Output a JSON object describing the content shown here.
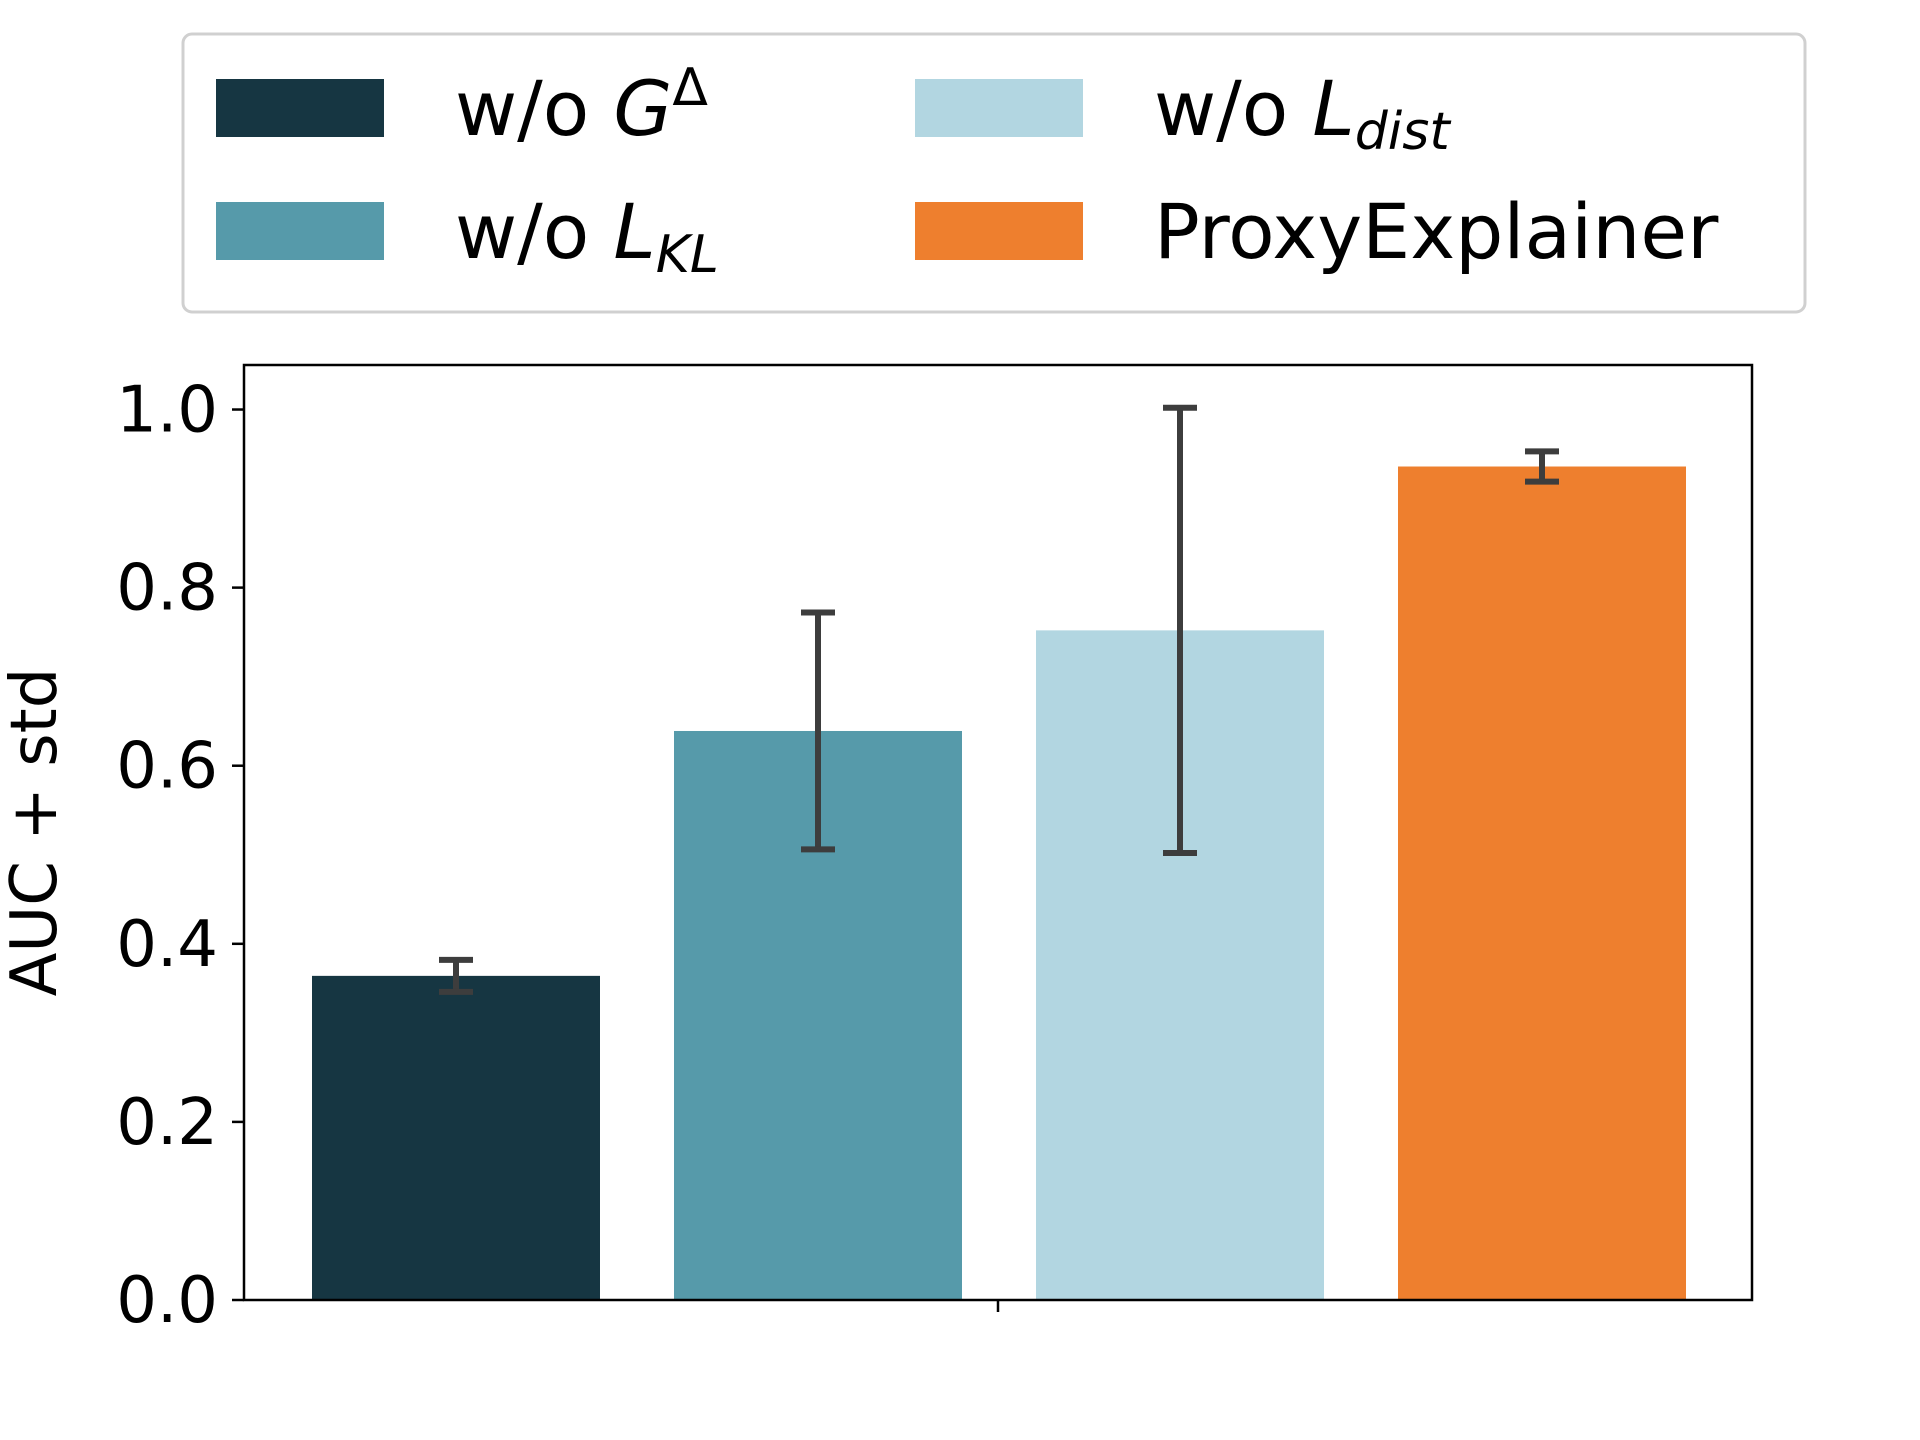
{
  "chart_data": {
    "type": "bar",
    "categories": [
      "w/o G^Δ",
      "w/o L_KL",
      "w/o L_dist",
      "ProxyExplainer"
    ],
    "values": [
      0.364,
      0.639,
      0.752,
      0.936
    ],
    "errors": [
      0.018,
      0.133,
      0.25,
      0.017
    ],
    "colors": [
      "#163642",
      "#569aaa",
      "#b2d6e1",
      "#ee7f2e"
    ],
    "error_color": "#3d3d3d",
    "title": "",
    "xlabel": "",
    "ylabel": "AUC + std",
    "ylim": [
      0,
      1.05
    ],
    "yticks": [
      0.0,
      0.2,
      0.4,
      0.6,
      0.8,
      1.0
    ],
    "ytick_labels": [
      "0.0",
      "0.2",
      "0.4",
      "0.6",
      "0.8",
      "1.0"
    ],
    "grid": false,
    "legend_position": "top (outside, above plot)",
    "legend": [
      {
        "base": "w/o ",
        "sym": "G",
        "sup": "Δ",
        "sub": ""
      },
      {
        "base": "w/o ",
        "sym": "L",
        "sup": "",
        "sub": "KL"
      },
      {
        "base": "w/o ",
        "sym": "L",
        "sup": "",
        "sub": "dist"
      },
      {
        "base": "ProxyExplainer",
        "sym": "",
        "sup": "",
        "sub": ""
      }
    ]
  }
}
